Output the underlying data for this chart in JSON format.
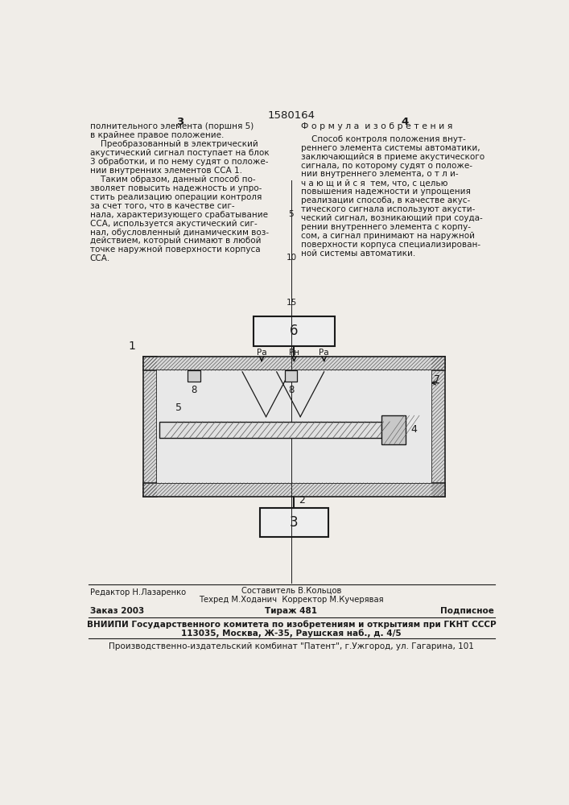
{
  "bg_color": "#f0ede8",
  "text_color": "#1a1a1a",
  "page_number_left": "3",
  "page_number_center": "1580164",
  "page_number_right": "4",
  "left_column_text": [
    "полнительного элемента (поршня 5)",
    "в крайнее правое положение.",
    "    Преобразованный в электрический",
    "акустический сигнал поступает на блок",
    "3 обработки, и по нему судят о положе-",
    "нии внутренних элементов ССА 1.",
    "    Таким образом, данный способ по-",
    "зволяет повысить надежность и упро-",
    "стить реализацию операции контроля",
    "за счет того, что в качестве сиг-",
    "нала, характеризующего срабатывание",
    "ССА, используется акустический сиг-",
    "нал, обусловленный динамическим воз-",
    "действием, который снимают в любой",
    "точке наружной поверхности корпуса",
    "ССА."
  ],
  "right_column_header": "Ф о р м у л а  и з о б р е т е н и я",
  "right_column_text": [
    "    Способ контроля положения внут-",
    "реннего элемента системы автоматики,",
    "заключающийся в приеме акустического",
    "сигнала, по которому судят о положе-",
    "нии внутреннего элемента, о т л и-",
    "ч а ю щ и й с я  тем, что, с целью",
    "повышения надежности и упрощения",
    "реализации способа, в качестве акус-",
    "тического сигнала используют акусти-",
    "ческий сигнал, возникающий при соуда-",
    "рении внутреннего элемента с корпу-",
    "сом, а сигнал принимают на наружной",
    "поверхности корпуса специализирован-",
    "ной системы автоматики."
  ],
  "footer_line1_left": "Редактор Н.Лазаренко",
  "footer_line1_center_title": "Составитель В.Кольцов",
  "footer_line1_center_sub": "Техред М.Ходанич  Корректор М.Кучерявая",
  "footer_line2_left": "Заказ 2003",
  "footer_line2_center": "Тираж 481",
  "footer_line2_right": "Подписное",
  "footer_line3": "ВНИИПИ Государственного комитета по изобретениям и открытиям при ГКНТ СССР",
  "footer_line4": "113035, Москва, Ж-35, Раушская наб., д. 4/5",
  "footer_line5": "Производственно-издательский комбинат \"Патент\", г.Ужгород, ул. Гагарина, 101"
}
